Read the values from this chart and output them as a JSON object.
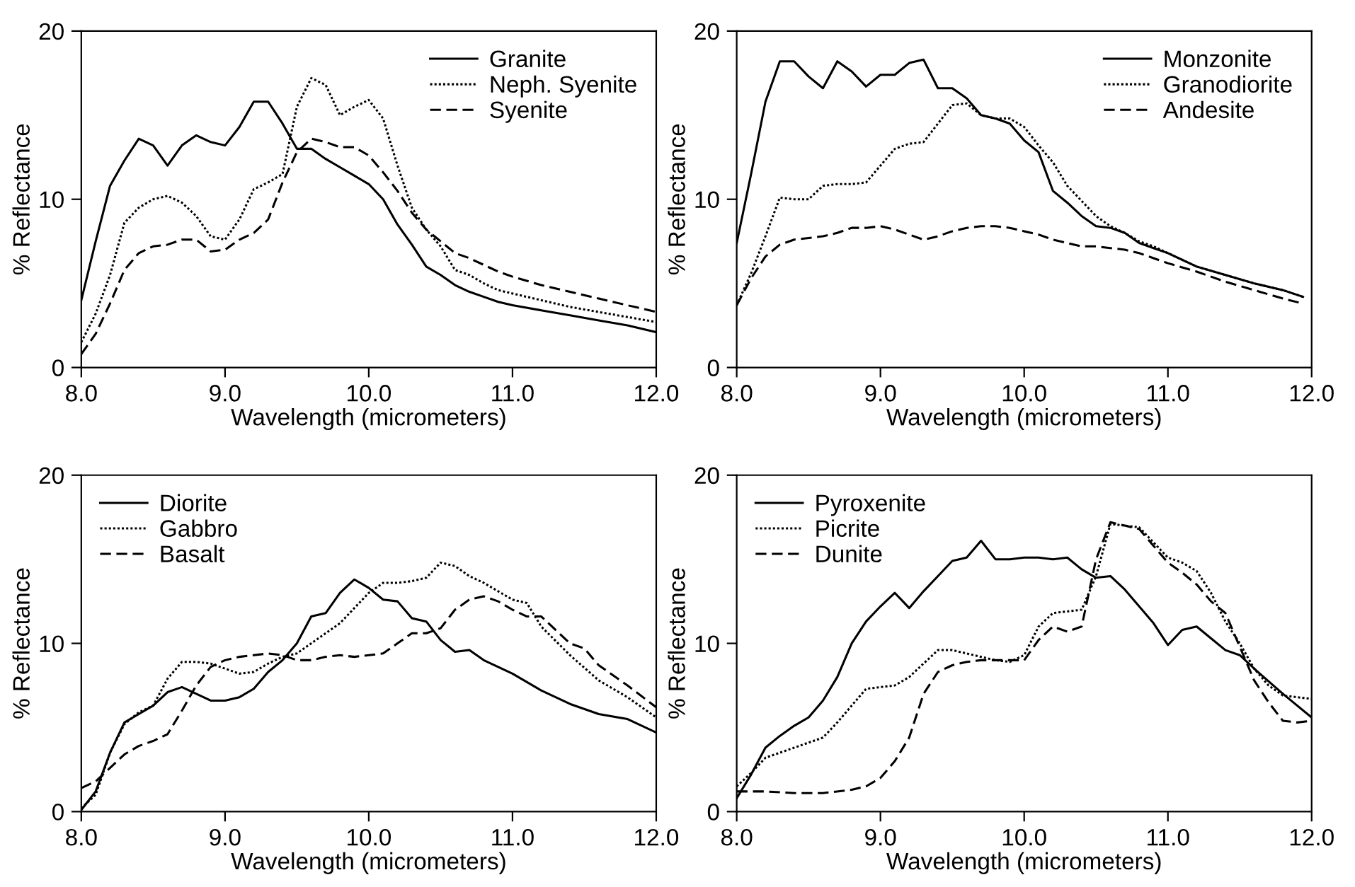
{
  "chart_data": [
    {
      "type": "line",
      "xlabel": "Wavelength (micrometers)",
      "ylabel": "% Reflectance",
      "xlim": [
        8,
        12
      ],
      "ylim": [
        0,
        20
      ],
      "xticks": [
        {
          "value": 8,
          "label": "8.0"
        },
        {
          "value": 9,
          "label": "9.0"
        },
        {
          "value": 10,
          "label": "10.0"
        },
        {
          "value": 11,
          "label": "11.0"
        },
        {
          "value": 12,
          "label": "12.0"
        }
      ],
      "yticks": [
        0,
        10,
        20
      ],
      "grid": false,
      "legend": "top right",
      "marker": "none",
      "series": [
        {
          "name": "Granite",
          "color": "#000000",
          "line_style": "solid",
          "x": [
            8.0,
            8.1,
            8.2,
            8.3,
            8.4,
            8.5,
            8.6,
            8.7,
            8.8,
            8.9,
            9.0,
            9.1,
            9.2,
            9.3,
            9.4,
            9.5,
            9.6,
            9.7,
            9.8,
            9.9,
            10.0,
            10.1,
            10.2,
            10.3,
            10.4,
            10.5,
            10.6,
            10.7,
            10.8,
            10.9,
            11.0,
            11.2,
            11.4,
            11.6,
            11.8,
            12.0
          ],
          "values": [
            4.0,
            7.5,
            10.8,
            12.3,
            13.6,
            13.2,
            12.0,
            13.2,
            13.8,
            13.4,
            13.2,
            14.3,
            15.8,
            15.8,
            14.5,
            13.0,
            13.0,
            12.4,
            11.9,
            11.4,
            10.9,
            10.0,
            8.5,
            7.3,
            6.0,
            5.5,
            4.9,
            4.5,
            4.2,
            3.9,
            3.7,
            3.4,
            3.1,
            2.8,
            2.5,
            2.1
          ]
        },
        {
          "name": "Neph. Syenite",
          "color": "#000000",
          "line_style": "dotted",
          "x": [
            8.0,
            8.1,
            8.2,
            8.3,
            8.4,
            8.5,
            8.6,
            8.7,
            8.8,
            8.9,
            9.0,
            9.1,
            9.2,
            9.3,
            9.4,
            9.5,
            9.6,
            9.7,
            9.8,
            9.9,
            10.0,
            10.1,
            10.2,
            10.3,
            10.4,
            10.5,
            10.6,
            10.7,
            10.8,
            10.9,
            11.0,
            11.2,
            11.4,
            11.6,
            11.8,
            12.0
          ],
          "values": [
            1.5,
            3.2,
            5.5,
            8.6,
            9.5,
            10.0,
            10.2,
            9.8,
            9.0,
            7.8,
            7.6,
            8.8,
            10.6,
            11.0,
            11.5,
            15.5,
            17.2,
            16.8,
            15.0,
            15.5,
            15.9,
            14.8,
            12.0,
            9.5,
            8.2,
            7.2,
            5.8,
            5.5,
            5.0,
            4.6,
            4.4,
            4.0,
            3.6,
            3.3,
            3.0,
            2.7
          ]
        },
        {
          "name": "Syenite",
          "color": "#000000",
          "line_style": "dashed",
          "x": [
            8.0,
            8.1,
            8.2,
            8.3,
            8.4,
            8.5,
            8.6,
            8.7,
            8.8,
            8.9,
            9.0,
            9.1,
            9.2,
            9.3,
            9.4,
            9.5,
            9.6,
            9.7,
            9.8,
            9.9,
            10.0,
            10.1,
            10.2,
            10.3,
            10.4,
            10.5,
            10.6,
            10.7,
            10.8,
            10.9,
            11.0,
            11.2,
            11.4,
            11.6,
            11.8,
            12.0
          ],
          "values": [
            0.8,
            2.0,
            3.8,
            5.8,
            6.8,
            7.2,
            7.3,
            7.6,
            7.6,
            6.9,
            7.0,
            7.6,
            8.0,
            8.8,
            11.0,
            12.8,
            13.6,
            13.4,
            13.1,
            13.1,
            12.6,
            11.6,
            10.5,
            9.2,
            8.2,
            7.5,
            6.8,
            6.5,
            6.1,
            5.7,
            5.4,
            4.9,
            4.5,
            4.1,
            3.7,
            3.3
          ]
        }
      ]
    },
    {
      "type": "line",
      "xlabel": "Wavelength (micrometers)",
      "ylabel": "% Reflectance",
      "xlim": [
        8,
        12
      ],
      "ylim": [
        0,
        20
      ],
      "xticks": [
        {
          "value": 8,
          "label": "8.0"
        },
        {
          "value": 9,
          "label": "9.0"
        },
        {
          "value": 10,
          "label": "10.0"
        },
        {
          "value": 11,
          "label": "11.0"
        },
        {
          "value": 12,
          "label": "12.0"
        }
      ],
      "yticks": [
        0,
        10,
        20
      ],
      "grid": false,
      "legend": "top right",
      "marker": "none",
      "series": [
        {
          "name": "Monzonite",
          "color": "#000000",
          "line_style": "solid",
          "x": [
            8.0,
            8.1,
            8.2,
            8.3,
            8.4,
            8.5,
            8.6,
            8.7,
            8.8,
            8.9,
            9.0,
            9.1,
            9.2,
            9.3,
            9.4,
            9.5,
            9.6,
            9.7,
            9.8,
            9.9,
            10.0,
            10.1,
            10.2,
            10.3,
            10.4,
            10.5,
            10.6,
            10.7,
            10.8,
            10.9,
            11.0,
            11.2,
            11.4,
            11.6,
            11.8,
            11.94
          ],
          "values": [
            7.4,
            11.5,
            15.8,
            18.2,
            18.2,
            17.3,
            16.6,
            18.2,
            17.6,
            16.7,
            17.4,
            17.4,
            18.1,
            18.3,
            16.6,
            16.6,
            16.0,
            15.0,
            14.8,
            14.5,
            13.5,
            12.8,
            10.5,
            9.8,
            9.0,
            8.4,
            8.3,
            8.0,
            7.4,
            7.1,
            6.8,
            6.0,
            5.5,
            5.0,
            4.6,
            4.2
          ]
        },
        {
          "name": "Granodiorite",
          "color": "#000000",
          "line_style": "dotted",
          "x": [
            8.0,
            8.1,
            8.2,
            8.3,
            8.4,
            8.5,
            8.6,
            8.7,
            8.8,
            8.9,
            9.0,
            9.1,
            9.2,
            9.3,
            9.4,
            9.5,
            9.6,
            9.7,
            9.8,
            9.9,
            10.0,
            10.1,
            10.2,
            10.3,
            10.4,
            10.5,
            10.6,
            10.7,
            10.8,
            10.9,
            11.0,
            11.2,
            11.4,
            11.6,
            11.8,
            11.94
          ],
          "values": [
            3.7,
            5.6,
            7.8,
            10.1,
            10.0,
            10.0,
            10.8,
            10.9,
            10.9,
            11.0,
            12.0,
            13.0,
            13.3,
            13.4,
            14.5,
            15.6,
            15.7,
            15.0,
            14.8,
            14.8,
            14.3,
            13.2,
            12.2,
            10.8,
            9.9,
            9.0,
            8.4,
            8.0,
            7.5,
            7.2,
            6.8,
            6.0,
            5.5,
            5.0,
            4.6,
            4.2
          ]
        },
        {
          "name": "Andesite",
          "color": "#000000",
          "line_style": "dashed",
          "x": [
            8.0,
            8.1,
            8.2,
            8.3,
            8.4,
            8.5,
            8.6,
            8.7,
            8.8,
            8.9,
            9.0,
            9.1,
            9.2,
            9.3,
            9.4,
            9.5,
            9.6,
            9.7,
            9.8,
            9.9,
            10.0,
            10.1,
            10.2,
            10.3,
            10.4,
            10.5,
            10.6,
            10.7,
            10.8,
            10.9,
            11.0,
            11.2,
            11.4,
            11.6,
            11.8,
            11.94
          ],
          "values": [
            3.7,
            5.3,
            6.6,
            7.3,
            7.6,
            7.7,
            7.8,
            8.0,
            8.3,
            8.3,
            8.4,
            8.2,
            7.9,
            7.6,
            7.8,
            8.1,
            8.3,
            8.4,
            8.4,
            8.3,
            8.1,
            7.9,
            7.6,
            7.4,
            7.2,
            7.2,
            7.1,
            7.0,
            6.8,
            6.5,
            6.2,
            5.7,
            5.1,
            4.6,
            4.1,
            3.8
          ]
        }
      ]
    },
    {
      "type": "line",
      "xlabel": "Wavelength (micrometers)",
      "ylabel": "% Reflectance",
      "xlim": [
        8,
        12
      ],
      "ylim": [
        0,
        20
      ],
      "xticks": [
        {
          "value": 8,
          "label": "8.0"
        },
        {
          "value": 9,
          "label": "9.0"
        },
        {
          "value": 10,
          "label": "10.0"
        },
        {
          "value": 11,
          "label": "11.0"
        },
        {
          "value": 12,
          "label": "12.0"
        }
      ],
      "yticks": [
        0,
        10,
        20
      ],
      "grid": false,
      "legend": "top left",
      "marker": "none",
      "series": [
        {
          "name": "Diorite",
          "color": "#000000",
          "line_style": "solid",
          "x": [
            8.0,
            8.1,
            8.2,
            8.3,
            8.4,
            8.5,
            8.6,
            8.7,
            8.8,
            8.9,
            9.0,
            9.1,
            9.2,
            9.3,
            9.4,
            9.5,
            9.6,
            9.7,
            9.8,
            9.9,
            10.0,
            10.1,
            10.2,
            10.3,
            10.4,
            10.5,
            10.6,
            10.7,
            10.8,
            10.9,
            11.0,
            11.2,
            11.4,
            11.6,
            11.8,
            12.0
          ],
          "values": [
            0.1,
            1.2,
            3.5,
            5.3,
            5.8,
            6.3,
            7.1,
            7.4,
            7.0,
            6.6,
            6.6,
            6.8,
            7.3,
            8.3,
            9.0,
            10.0,
            11.6,
            11.8,
            13.0,
            13.8,
            13.3,
            12.6,
            12.5,
            11.5,
            11.3,
            10.2,
            9.5,
            9.6,
            9.0,
            8.6,
            8.2,
            7.2,
            6.4,
            5.8,
            5.5,
            4.7
          ]
        },
        {
          "name": "Gabbro",
          "color": "#000000",
          "line_style": "dotted",
          "x": [
            8.0,
            8.1,
            8.2,
            8.3,
            8.4,
            8.5,
            8.6,
            8.7,
            8.8,
            8.9,
            9.0,
            9.1,
            9.2,
            9.3,
            9.4,
            9.5,
            9.6,
            9.7,
            9.8,
            9.9,
            10.0,
            10.1,
            10.2,
            10.3,
            10.4,
            10.5,
            10.6,
            10.7,
            10.8,
            10.9,
            11.0,
            11.1,
            11.2,
            11.4,
            11.6,
            11.8,
            12.0
          ],
          "values": [
            0.2,
            1.0,
            3.5,
            5.2,
            5.9,
            6.3,
            7.9,
            8.9,
            8.9,
            8.8,
            8.5,
            8.2,
            8.3,
            8.8,
            9.2,
            9.4,
            10.0,
            10.6,
            11.2,
            12.1,
            13.0,
            13.6,
            13.6,
            13.7,
            13.9,
            14.8,
            14.6,
            14.0,
            13.6,
            13.1,
            12.6,
            12.4,
            11.0,
            9.3,
            7.8,
            6.8,
            5.6
          ]
        },
        {
          "name": "Basalt",
          "color": "#000000",
          "line_style": "dashed",
          "x": [
            8.0,
            8.1,
            8.2,
            8.3,
            8.4,
            8.5,
            8.6,
            8.7,
            8.8,
            8.9,
            9.0,
            9.1,
            9.2,
            9.3,
            9.4,
            9.5,
            9.6,
            9.7,
            9.8,
            9.9,
            10.0,
            10.1,
            10.2,
            10.3,
            10.4,
            10.5,
            10.6,
            10.7,
            10.8,
            10.9,
            11.0,
            11.1,
            11.2,
            11.4,
            11.5,
            11.6,
            11.8,
            12.0
          ],
          "values": [
            1.4,
            1.8,
            2.6,
            3.4,
            3.9,
            4.2,
            4.6,
            6.0,
            7.5,
            8.6,
            9.0,
            9.2,
            9.3,
            9.4,
            9.3,
            9.0,
            9.0,
            9.2,
            9.3,
            9.2,
            9.3,
            9.4,
            10.0,
            10.6,
            10.6,
            10.9,
            12.0,
            12.6,
            12.8,
            12.5,
            12.0,
            11.6,
            11.6,
            10.0,
            9.7,
            8.7,
            7.5,
            6.2
          ]
        }
      ]
    },
    {
      "type": "line",
      "xlabel": "Wavelength (micrometers)",
      "ylabel": "% Reflectance",
      "xlim": [
        8,
        12
      ],
      "ylim": [
        0,
        20
      ],
      "xticks": [
        {
          "value": 8,
          "label": "8.0"
        },
        {
          "value": 9,
          "label": "9.0"
        },
        {
          "value": 10,
          "label": "10.0"
        },
        {
          "value": 11,
          "label": "11.0"
        },
        {
          "value": 12,
          "label": "12.0"
        }
      ],
      "yticks": [
        0,
        10,
        20
      ],
      "grid": false,
      "legend": "top left",
      "marker": "none",
      "series": [
        {
          "name": "Pyroxenite",
          "color": "#000000",
          "line_style": "solid",
          "x": [
            8.0,
            8.1,
            8.2,
            8.3,
            8.4,
            8.5,
            8.6,
            8.7,
            8.8,
            8.9,
            9.0,
            9.1,
            9.2,
            9.3,
            9.4,
            9.5,
            9.6,
            9.7,
            9.8,
            9.9,
            10.0,
            10.1,
            10.2,
            10.3,
            10.4,
            10.5,
            10.6,
            10.7,
            10.8,
            10.9,
            11.0,
            11.1,
            11.2,
            11.3,
            11.4,
            11.5,
            11.6,
            11.8,
            12.0
          ],
          "values": [
            0.8,
            2.2,
            3.8,
            4.5,
            5.1,
            5.6,
            6.6,
            8.0,
            10.0,
            11.3,
            12.2,
            13.0,
            12.1,
            13.1,
            14.0,
            14.9,
            15.1,
            16.1,
            15.0,
            15.0,
            15.1,
            15.1,
            15.0,
            15.1,
            14.4,
            13.9,
            14.0,
            13.2,
            12.2,
            11.2,
            9.9,
            10.8,
            11.0,
            10.3,
            9.6,
            9.3,
            8.5,
            7.0,
            5.6
          ]
        },
        {
          "name": "Picrite",
          "color": "#000000",
          "line_style": "dotted",
          "x": [
            8.0,
            8.1,
            8.2,
            8.3,
            8.4,
            8.5,
            8.6,
            8.7,
            8.8,
            8.9,
            9.0,
            9.1,
            9.2,
            9.3,
            9.4,
            9.5,
            9.6,
            9.7,
            9.8,
            9.9,
            10.0,
            10.1,
            10.2,
            10.3,
            10.4,
            10.5,
            10.6,
            10.7,
            10.8,
            10.9,
            11.0,
            11.1,
            11.2,
            11.3,
            11.4,
            11.5,
            11.6,
            11.7,
            11.8,
            12.0
          ],
          "values": [
            1.5,
            2.3,
            3.2,
            3.5,
            3.8,
            4.1,
            4.4,
            5.3,
            6.3,
            7.3,
            7.4,
            7.5,
            8.0,
            8.8,
            9.6,
            9.6,
            9.4,
            9.2,
            9.0,
            8.9,
            9.3,
            11.0,
            11.8,
            11.9,
            12.0,
            14.0,
            17.1,
            17.0,
            16.9,
            16.0,
            15.1,
            14.8,
            14.3,
            13.0,
            11.3,
            10.0,
            8.5,
            7.5,
            6.9,
            6.7
          ]
        },
        {
          "name": "Dunite",
          "color": "#000000",
          "line_style": "dashed",
          "x": [
            8.0,
            8.2,
            8.4,
            8.6,
            8.8,
            8.9,
            9.0,
            9.1,
            9.2,
            9.3,
            9.4,
            9.5,
            9.6,
            9.7,
            9.8,
            9.9,
            10.0,
            10.1,
            10.2,
            10.3,
            10.4,
            10.5,
            10.6,
            10.7,
            10.8,
            10.9,
            11.0,
            11.1,
            11.2,
            11.3,
            11.4,
            11.5,
            11.6,
            11.7,
            11.8,
            11.9,
            12.0
          ],
          "values": [
            1.2,
            1.2,
            1.1,
            1.1,
            1.3,
            1.5,
            2.0,
            3.0,
            4.4,
            7.0,
            8.3,
            8.7,
            8.9,
            9.0,
            9.0,
            9.0,
            9.0,
            10.2,
            11.0,
            10.7,
            11.0,
            15.0,
            17.2,
            17.0,
            16.8,
            15.8,
            14.8,
            14.2,
            13.5,
            12.5,
            11.8,
            9.8,
            7.8,
            6.5,
            5.4,
            5.3,
            5.4
          ]
        }
      ]
    }
  ]
}
